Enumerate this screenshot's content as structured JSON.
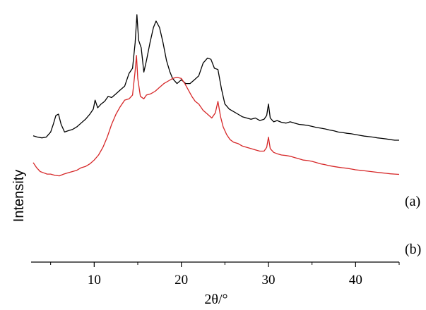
{
  "chart_data": {
    "type": "line",
    "xlabel": "2θ/°",
    "ylabel": "Intensity",
    "xlim": [
      3,
      45
    ],
    "x_ticks": [
      10,
      20,
      30,
      40
    ],
    "y_ticks": [],
    "grid": false,
    "legend": "none",
    "series": [
      {
        "name": "(a)",
        "color": "#000000",
        "points": [
          [
            3.0,
            0.495
          ],
          [
            3.5,
            0.49
          ],
          [
            4.0,
            0.487
          ],
          [
            4.5,
            0.49
          ],
          [
            5.0,
            0.51
          ],
          [
            5.3,
            0.54
          ],
          [
            5.6,
            0.575
          ],
          [
            5.9,
            0.58
          ],
          [
            6.2,
            0.54
          ],
          [
            6.6,
            0.51
          ],
          [
            7.0,
            0.515
          ],
          [
            7.5,
            0.52
          ],
          [
            8.0,
            0.53
          ],
          [
            8.5,
            0.545
          ],
          [
            9.0,
            0.56
          ],
          [
            9.5,
            0.58
          ],
          [
            9.9,
            0.6
          ],
          [
            10.1,
            0.635
          ],
          [
            10.4,
            0.605
          ],
          [
            10.8,
            0.62
          ],
          [
            11.2,
            0.63
          ],
          [
            11.6,
            0.65
          ],
          [
            12.0,
            0.645
          ],
          [
            12.5,
            0.66
          ],
          [
            13.0,
            0.675
          ],
          [
            13.5,
            0.69
          ],
          [
            14.0,
            0.74
          ],
          [
            14.4,
            0.76
          ],
          [
            14.7,
            0.86
          ],
          [
            14.9,
            0.97
          ],
          [
            15.1,
            0.87
          ],
          [
            15.4,
            0.84
          ],
          [
            15.7,
            0.745
          ],
          [
            16.0,
            0.79
          ],
          [
            16.4,
            0.86
          ],
          [
            16.8,
            0.92
          ],
          [
            17.1,
            0.945
          ],
          [
            17.5,
            0.92
          ],
          [
            17.9,
            0.86
          ],
          [
            18.3,
            0.79
          ],
          [
            18.7,
            0.745
          ],
          [
            19.0,
            0.72
          ],
          [
            19.5,
            0.7
          ],
          [
            20.0,
            0.715
          ],
          [
            20.5,
            0.7
          ],
          [
            21.0,
            0.7
          ],
          [
            21.5,
            0.715
          ],
          [
            22.0,
            0.73
          ],
          [
            22.5,
            0.78
          ],
          [
            23.0,
            0.8
          ],
          [
            23.4,
            0.795
          ],
          [
            23.8,
            0.76
          ],
          [
            24.2,
            0.755
          ],
          [
            24.6,
            0.68
          ],
          [
            25.0,
            0.62
          ],
          [
            25.5,
            0.6
          ],
          [
            26.0,
            0.59
          ],
          [
            26.5,
            0.58
          ],
          [
            27.0,
            0.57
          ],
          [
            27.5,
            0.565
          ],
          [
            28.0,
            0.56
          ],
          [
            28.5,
            0.565
          ],
          [
            29.0,
            0.555
          ],
          [
            29.5,
            0.56
          ],
          [
            29.8,
            0.575
          ],
          [
            30.0,
            0.62
          ],
          [
            30.2,
            0.565
          ],
          [
            30.6,
            0.55
          ],
          [
            31.0,
            0.555
          ],
          [
            31.5,
            0.548
          ],
          [
            32.0,
            0.545
          ],
          [
            32.5,
            0.55
          ],
          [
            33.0,
            0.545
          ],
          [
            33.5,
            0.54
          ],
          [
            34.0,
            0.538
          ],
          [
            34.5,
            0.536
          ],
          [
            35.0,
            0.532
          ],
          [
            35.5,
            0.528
          ],
          [
            36.0,
            0.525
          ],
          [
            36.5,
            0.522
          ],
          [
            37.0,
            0.518
          ],
          [
            37.5,
            0.515
          ],
          [
            38.0,
            0.51
          ],
          [
            38.5,
            0.508
          ],
          [
            39.0,
            0.505
          ],
          [
            39.5,
            0.503
          ],
          [
            40.0,
            0.5
          ],
          [
            40.5,
            0.497
          ],
          [
            41.0,
            0.494
          ],
          [
            41.5,
            0.492
          ],
          [
            42.0,
            0.49
          ],
          [
            42.5,
            0.487
          ],
          [
            43.0,
            0.485
          ],
          [
            43.5,
            0.483
          ],
          [
            44.0,
            0.48
          ],
          [
            44.5,
            0.478
          ],
          [
            45.0,
            0.478
          ]
        ]
      },
      {
        "name": "(b)",
        "color": "#d62728",
        "points": [
          [
            3.0,
            0.39
          ],
          [
            3.4,
            0.37
          ],
          [
            3.8,
            0.355
          ],
          [
            4.2,
            0.35
          ],
          [
            4.6,
            0.345
          ],
          [
            5.0,
            0.345
          ],
          [
            5.5,
            0.34
          ],
          [
            6.0,
            0.338
          ],
          [
            6.5,
            0.345
          ],
          [
            7.0,
            0.35
          ],
          [
            7.5,
            0.355
          ],
          [
            8.0,
            0.36
          ],
          [
            8.5,
            0.37
          ],
          [
            9.0,
            0.375
          ],
          [
            9.5,
            0.385
          ],
          [
            10.0,
            0.4
          ],
          [
            10.5,
            0.42
          ],
          [
            11.0,
            0.45
          ],
          [
            11.5,
            0.49
          ],
          [
            12.0,
            0.54
          ],
          [
            12.5,
            0.58
          ],
          [
            13.0,
            0.61
          ],
          [
            13.5,
            0.635
          ],
          [
            14.0,
            0.64
          ],
          [
            14.4,
            0.655
          ],
          [
            14.7,
            0.75
          ],
          [
            14.85,
            0.81
          ],
          [
            15.0,
            0.72
          ],
          [
            15.3,
            0.65
          ],
          [
            15.7,
            0.64
          ],
          [
            16.0,
            0.655
          ],
          [
            16.5,
            0.66
          ],
          [
            17.0,
            0.67
          ],
          [
            17.5,
            0.685
          ],
          [
            18.0,
            0.7
          ],
          [
            18.5,
            0.71
          ],
          [
            19.0,
            0.72
          ],
          [
            19.5,
            0.725
          ],
          [
            20.0,
            0.72
          ],
          [
            20.4,
            0.7
          ],
          [
            20.8,
            0.675
          ],
          [
            21.2,
            0.65
          ],
          [
            21.6,
            0.63
          ],
          [
            22.0,
            0.62
          ],
          [
            22.5,
            0.595
          ],
          [
            23.0,
            0.58
          ],
          [
            23.5,
            0.565
          ],
          [
            23.9,
            0.585
          ],
          [
            24.2,
            0.63
          ],
          [
            24.5,
            0.57
          ],
          [
            24.8,
            0.53
          ],
          [
            25.2,
            0.5
          ],
          [
            25.6,
            0.48
          ],
          [
            26.0,
            0.47
          ],
          [
            26.5,
            0.465
          ],
          [
            27.0,
            0.455
          ],
          [
            27.5,
            0.45
          ],
          [
            28.0,
            0.445
          ],
          [
            28.5,
            0.44
          ],
          [
            29.0,
            0.435
          ],
          [
            29.5,
            0.435
          ],
          [
            29.8,
            0.45
          ],
          [
            30.0,
            0.49
          ],
          [
            30.2,
            0.445
          ],
          [
            30.6,
            0.43
          ],
          [
            31.0,
            0.425
          ],
          [
            31.5,
            0.42
          ],
          [
            32.0,
            0.418
          ],
          [
            32.5,
            0.415
          ],
          [
            33.0,
            0.41
          ],
          [
            33.5,
            0.405
          ],
          [
            34.0,
            0.4
          ],
          [
            34.5,
            0.398
          ],
          [
            35.0,
            0.395
          ],
          [
            35.5,
            0.39
          ],
          [
            36.0,
            0.385
          ],
          [
            36.5,
            0.382
          ],
          [
            37.0,
            0.378
          ],
          [
            37.5,
            0.375
          ],
          [
            38.0,
            0.372
          ],
          [
            38.5,
            0.37
          ],
          [
            39.0,
            0.368
          ],
          [
            39.5,
            0.365
          ],
          [
            40.0,
            0.362
          ],
          [
            40.5,
            0.36
          ],
          [
            41.0,
            0.358
          ],
          [
            41.5,
            0.356
          ],
          [
            42.0,
            0.354
          ],
          [
            42.5,
            0.352
          ],
          [
            43.0,
            0.35
          ],
          [
            43.5,
            0.348
          ],
          [
            44.0,
            0.346
          ],
          [
            44.5,
            0.345
          ],
          [
            45.0,
            0.344
          ]
        ]
      }
    ]
  }
}
